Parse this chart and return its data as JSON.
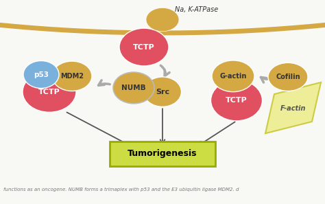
{
  "bg_color": "#f8f8f5",
  "membrane_color": "#d4a843",
  "tctp_color_top": "#e05060",
  "tctp_color": "#e05060",
  "na_katpase_color": "#d4a843",
  "src_color": "#d4a843",
  "p53_color": "#7ab0dc",
  "mdm2_color": "#d4a843",
  "numb_color": "#d4a843",
  "gactin_color": "#d4a843",
  "cofilin_color": "#d4a843",
  "factin_color": "#eeee99",
  "factin_border": "#cccc44",
  "tumorigenesis_bg": "#ccdd44",
  "tumorigenesis_border": "#99aa00",
  "na_label": "Na, K-ATPase",
  "labels": {
    "tctp": "TCTP",
    "src": "Src",
    "p53": "p53",
    "mdm2": "MDM2",
    "numb": "NUMB",
    "gactin": "G-actin",
    "cofilin": "Cofilin",
    "factin": "F-actin",
    "tumorigenesis": "Tumorigenesis"
  },
  "arrow_color": "#aaaaaa",
  "dark_arrow": "#555555"
}
